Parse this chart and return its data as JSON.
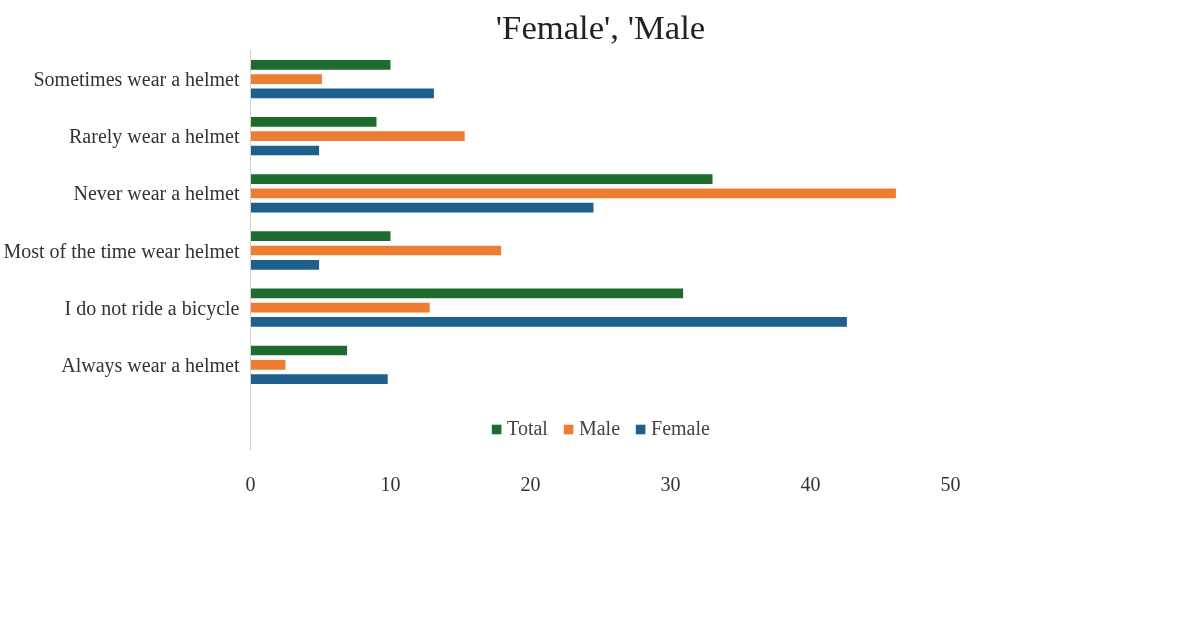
{
  "chart_data": {
    "type": "bar",
    "orientation": "horizontal",
    "title": "'Female', 'Male",
    "categories": [
      "Sometimes wear a helmet",
      "Rarely wear a helmet",
      "Never wear a helmet",
      "Most of the time wear helmet",
      "I do not ride a bicycle",
      "Always wear a helmet"
    ],
    "series": [
      {
        "name": "Total",
        "color": "#1e6b2e",
        "values": [
          10,
          9,
          33,
          10,
          30.9,
          6.9
        ]
      },
      {
        "name": "Male",
        "color": "#ed7d31",
        "values": [
          5.1,
          15.3,
          46.1,
          17.9,
          12.8,
          2.5
        ]
      },
      {
        "name": "Female",
        "color": "#1f5f8b",
        "values": [
          13.1,
          4.9,
          24.5,
          4.9,
          42.6,
          9.8
        ]
      }
    ],
    "xlim": [
      0,
      50
    ],
    "xticks": [
      0,
      10,
      20,
      30,
      40,
      50
    ],
    "grid": false,
    "legend": "bottom"
  }
}
